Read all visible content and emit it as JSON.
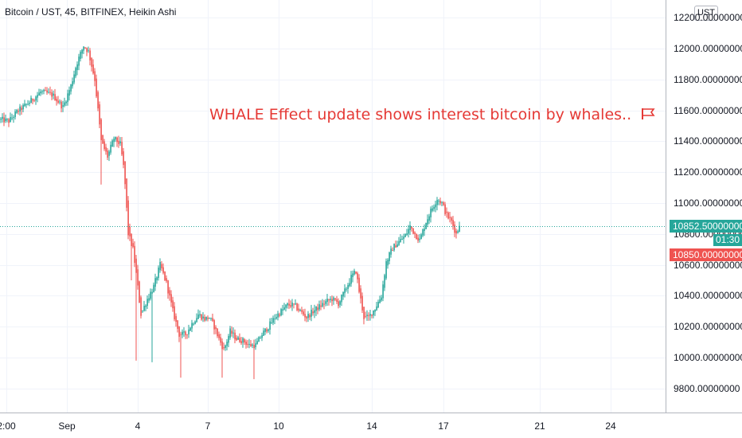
{
  "title": "Bitcoin / UST, 45, BITFINEX, Heikin Ashi",
  "annotation": {
    "text": "WHALE Effect update shows interest bitcoin by whales..",
    "color": "#e53935"
  },
  "currency_button": "UST",
  "price_scale": {
    "ticks": [
      "9800.00000000",
      "10000.00000000",
      "10200.00000000",
      "10400.00000000",
      "10600.00000000",
      "10800.00000000",
      "11000.00000000",
      "11200.00000000",
      "11400.00000000",
      "11600.00000000",
      "11800.00000000",
      "12000.00000000",
      "12200.00000000"
    ]
  },
  "time_scale": {
    "ticks": [
      "2:00",
      "Sep",
      "4",
      "7",
      "10",
      "14",
      "17",
      "21",
      "24"
    ]
  },
  "last_price": {
    "label": "10852.50000000",
    "color": "#26a69a"
  },
  "countdown": "01:30",
  "real_price": {
    "label": "10850.00000000",
    "color": "#ef5350"
  },
  "colors": {
    "up": "#26a69a",
    "down": "#ef5350",
    "grid": "#f0f3fa",
    "axis": "#b2b5be"
  },
  "chart_data": {
    "type": "candlestick",
    "title": "Bitcoin / UST, 45, BITFINEX, Heikin Ashi",
    "ylim": [
      9700,
      12250
    ],
    "y_ticks": [
      9800,
      10000,
      10200,
      10400,
      10600,
      10800,
      11000,
      11200,
      11400,
      11600,
      11800,
      12000,
      12200
    ],
    "x_ticks": [
      "2:00",
      "Sep",
      "4",
      "7",
      "10",
      "14",
      "17",
      "21",
      "24"
    ],
    "grid": true,
    "price_anchors": [
      [
        0,
        11540
      ],
      [
        10,
        11530
      ],
      [
        20,
        11590
      ],
      [
        35,
        11650
      ],
      [
        50,
        11720
      ],
      [
        65,
        11700
      ],
      [
        78,
        11620
      ],
      [
        88,
        11760
      ],
      [
        95,
        11900
      ],
      [
        104,
        12020
      ],
      [
        110,
        11980
      ],
      [
        118,
        11800
      ],
      [
        126,
        11400
      ],
      [
        134,
        11300
      ],
      [
        142,
        11420
      ],
      [
        150,
        11380
      ],
      [
        155,
        11200
      ],
      [
        160,
        10800
      ],
      [
        166,
        10700
      ],
      [
        170,
        10540
      ],
      [
        176,
        10280
      ],
      [
        184,
        10380
      ],
      [
        192,
        10460
      ],
      [
        200,
        10600
      ],
      [
        208,
        10480
      ],
      [
        216,
        10300
      ],
      [
        224,
        10150
      ],
      [
        232,
        10150
      ],
      [
        240,
        10220
      ],
      [
        248,
        10280
      ],
      [
        256,
        10250
      ],
      [
        262,
        10260
      ],
      [
        268,
        10200
      ],
      [
        274,
        10120
      ],
      [
        280,
        10050
      ],
      [
        288,
        10170
      ],
      [
        296,
        10120
      ],
      [
        304,
        10110
      ],
      [
        312,
        10080
      ],
      [
        320,
        10080
      ],
      [
        328,
        10150
      ],
      [
        336,
        10200
      ],
      [
        344,
        10260
      ],
      [
        352,
        10300
      ],
      [
        360,
        10340
      ],
      [
        368,
        10340
      ],
      [
        376,
        10300
      ],
      [
        384,
        10260
      ],
      [
        392,
        10300
      ],
      [
        400,
        10330
      ],
      [
        408,
        10360
      ],
      [
        416,
        10380
      ],
      [
        424,
        10350
      ],
      [
        432,
        10430
      ],
      [
        440,
        10520
      ],
      [
        446,
        10560
      ],
      [
        450,
        10430
      ],
      [
        456,
        10260
      ],
      [
        462,
        10260
      ],
      [
        470,
        10320
      ],
      [
        478,
        10400
      ],
      [
        484,
        10620
      ],
      [
        492,
        10710
      ],
      [
        500,
        10750
      ],
      [
        508,
        10790
      ],
      [
        514,
        10850
      ],
      [
        520,
        10800
      ],
      [
        526,
        10760
      ],
      [
        534,
        10880
      ],
      [
        540,
        10950
      ],
      [
        548,
        11030
      ],
      [
        554,
        11000
      ],
      [
        560,
        10920
      ],
      [
        566,
        10880
      ],
      [
        572,
        10800
      ],
      [
        576,
        10852
      ]
    ],
    "dip_spikes": [
      [
        127,
        11120
      ],
      [
        164,
        10500
      ],
      [
        171,
        9980
      ],
      [
        190,
        9970
      ],
      [
        226,
        9870
      ],
      [
        279,
        9870
      ],
      [
        319,
        9860
      ]
    ],
    "last": 10852.5,
    "real_price": 10850.0
  }
}
